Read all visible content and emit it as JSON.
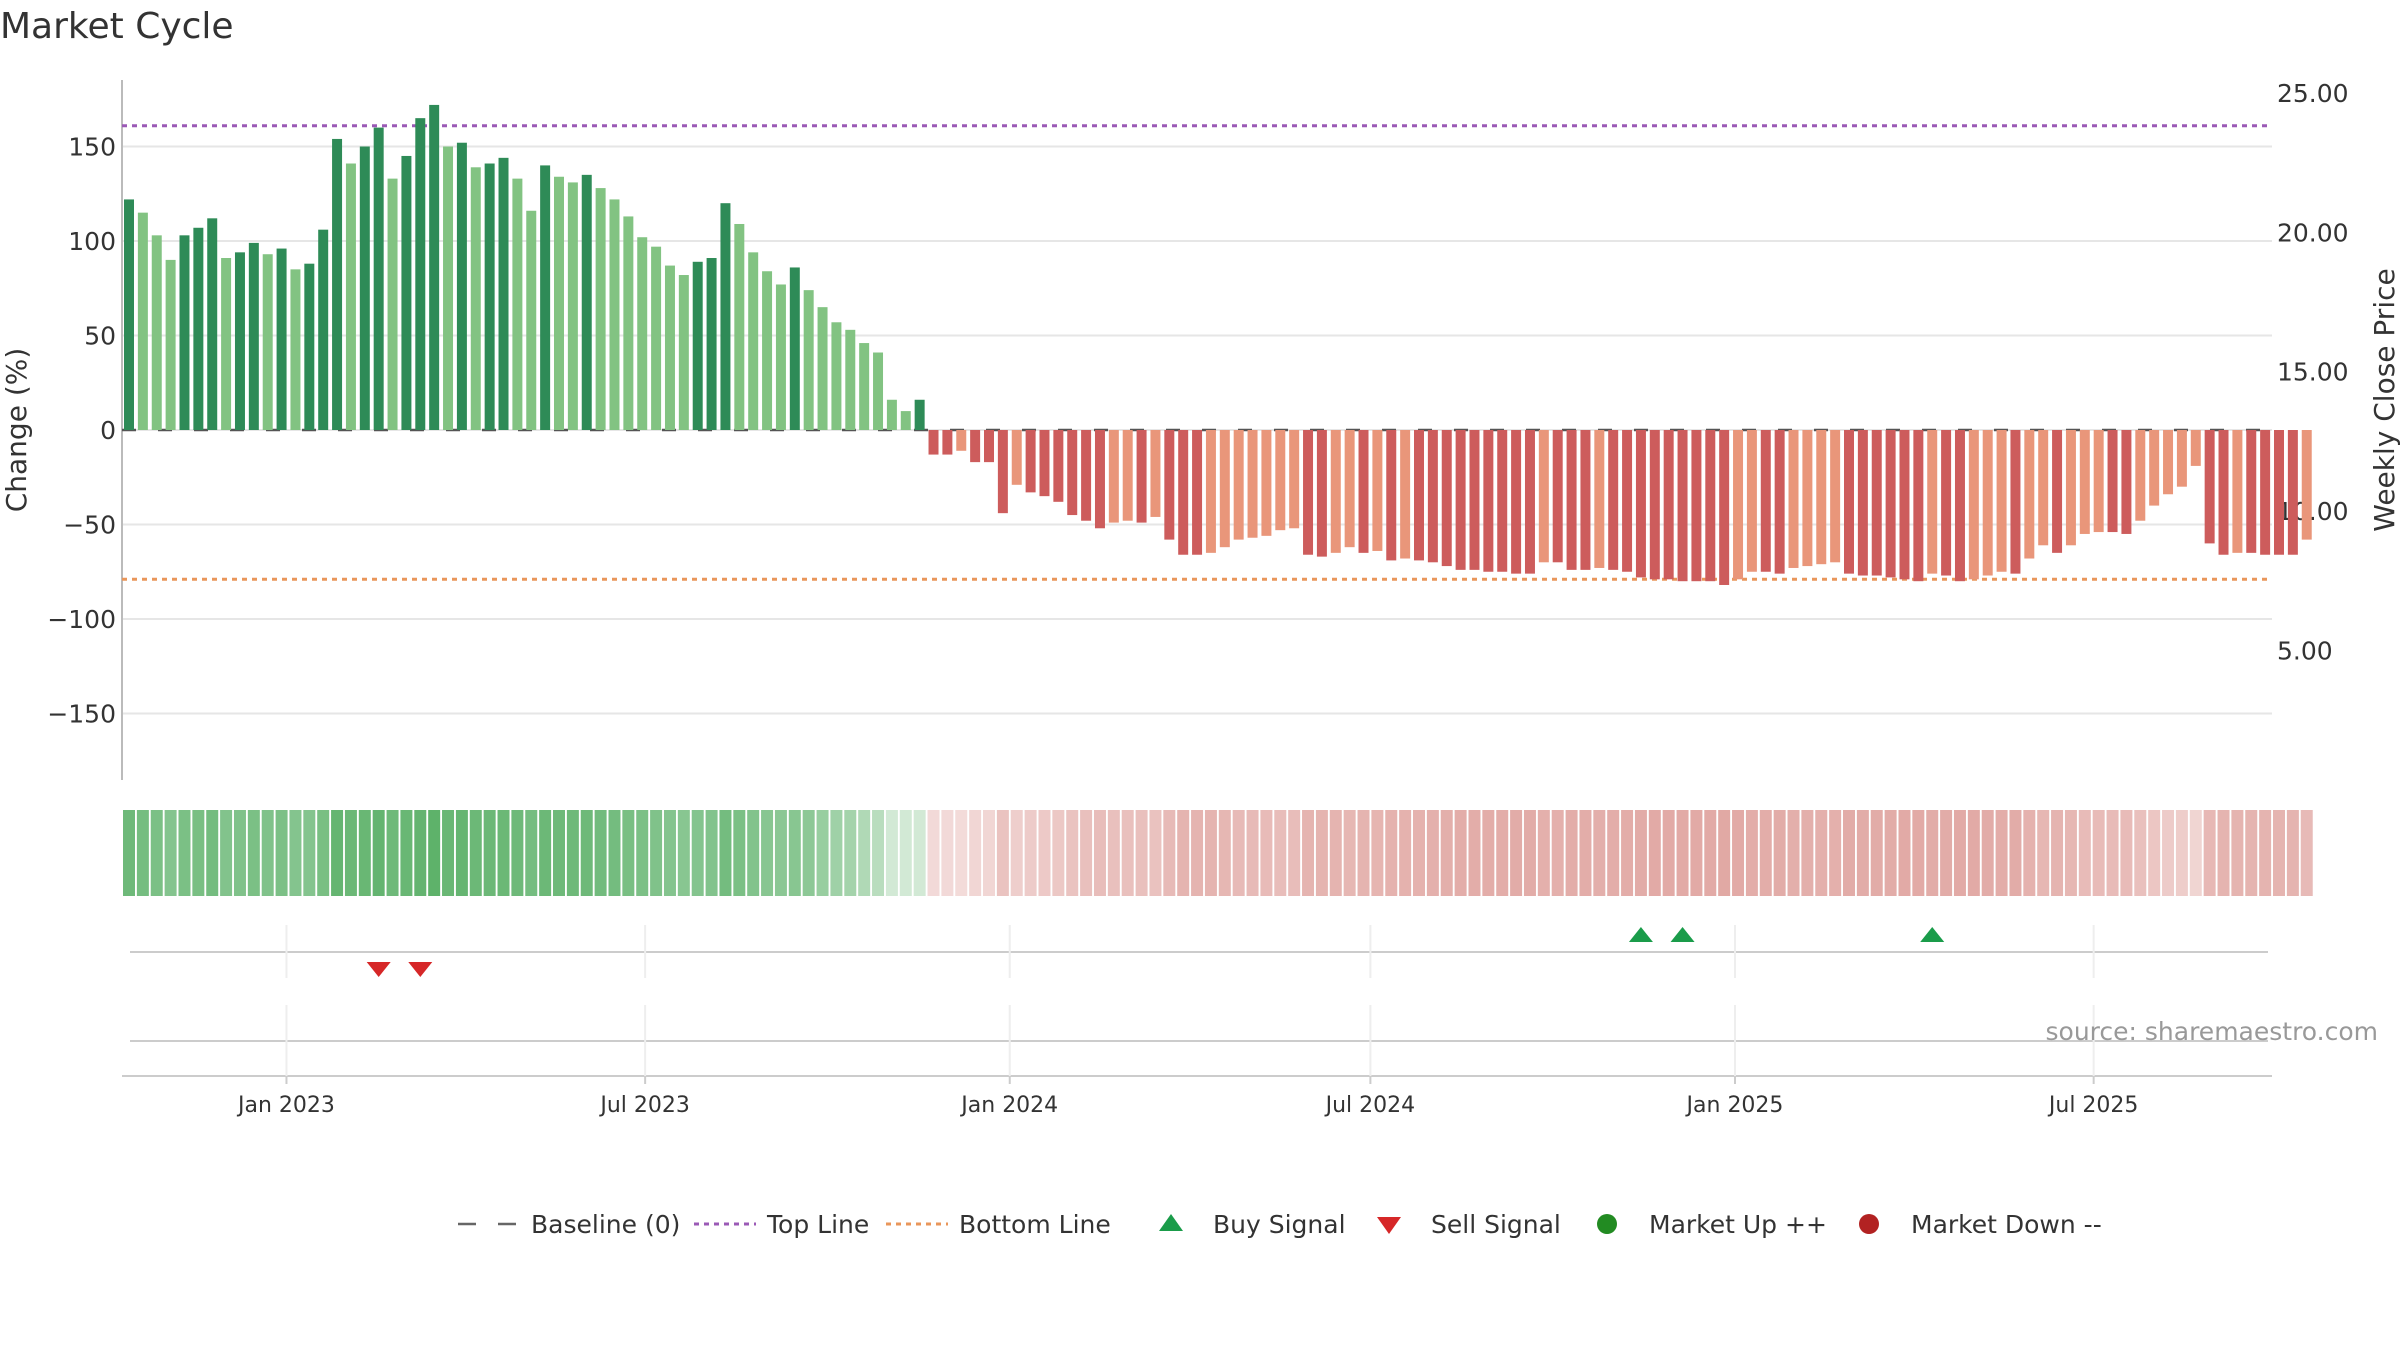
{
  "title": "Market Cycle",
  "source": "source: sharemaestro.com",
  "colors": {
    "up_dark": "#2e8b57",
    "up_light": "#82c382",
    "down_dark": "#cd5c5c",
    "down_light": "#e9967a",
    "top_line": "#9b59b6",
    "bottom_line": "#e9965a",
    "baseline": "#555555",
    "buy": "#1a9c4a",
    "sell": "#d62728",
    "market_up": "#228b22",
    "market_down": "#b22222"
  },
  "chart_data": {
    "type": "bar",
    "ylabel_left": "Change (%)",
    "ylabel_right": "Weekly Close Price",
    "ylim_left": [
      -185,
      185
    ],
    "y_ticks_left": [
      "150",
      "100",
      "50",
      "0",
      "−50",
      "−100",
      "−150"
    ],
    "y_ticks_left_values": [
      150,
      100,
      50,
      0,
      -50,
      -100,
      -150
    ],
    "y_ticks_right": [
      "25.00",
      "20.00",
      "15.00",
      "10.00",
      "5.00"
    ],
    "y_ticks_right_values": [
      25,
      20,
      15,
      10,
      5
    ],
    "ylim_right": [
      -0.17,
      27.2
    ],
    "top_line": 161,
    "bottom_line": -79,
    "x_start": "2022-10-10",
    "x_end": "2025-09-29",
    "x_ticks": [
      {
        "date": "2023-01-01",
        "label": "Jan 2023"
      },
      {
        "date": "2023-07-01",
        "label": "Jul 2023"
      },
      {
        "date": "2024-01-01",
        "label": "Jan 2024"
      },
      {
        "date": "2024-07-01",
        "label": "Jul 2024"
      },
      {
        "date": "2025-01-01",
        "label": "Jan 2025"
      },
      {
        "date": "2025-07-01",
        "label": "Jul 2025"
      }
    ],
    "first_week": "2022-10-10",
    "values": [
      122,
      115,
      103,
      90,
      103,
      107,
      112,
      91,
      94,
      99,
      93,
      96,
      85,
      88,
      106,
      154,
      141,
      150,
      160,
      133,
      145,
      165,
      172,
      150,
      152,
      139,
      141,
      144,
      133,
      116,
      140,
      134,
      131,
      135,
      128,
      122,
      113,
      102,
      97,
      87,
      82,
      89,
      91,
      120,
      109,
      94,
      84,
      77,
      86,
      74,
      65,
      57,
      53,
      46,
      41,
      16,
      10,
      16,
      -13,
      -13,
      -11,
      -17,
      -17,
      -44,
      -29,
      -33,
      -35,
      -38,
      -45,
      -48,
      -52,
      -49,
      -48,
      -49,
      -46,
      -58,
      -66,
      -66,
      -65,
      -62,
      -58,
      -57,
      -56,
      -53,
      -52,
      -66,
      -67,
      -65,
      -62,
      -65,
      -64,
      -69,
      -68,
      -69,
      -70,
      -72,
      -74,
      -74,
      -75,
      -75,
      -76,
      -76,
      -70,
      -70,
      -74,
      -74,
      -73,
      -74,
      -75,
      -78,
      -79,
      -79,
      -80,
      -80,
      -80,
      -82,
      -79,
      -75,
      -75,
      -76,
      -73,
      -72,
      -71,
      -70,
      -76,
      -77,
      -77,
      -78,
      -79,
      -80,
      -76,
      -77,
      -80,
      -79,
      -77,
      -75,
      -76,
      -68,
      -61,
      -65,
      -61,
      -55,
      -54,
      -54,
      -55,
      -48,
      -40,
      -34,
      -30,
      -19,
      -60,
      -66,
      -65,
      -65,
      -66,
      -66,
      -66,
      -58
    ],
    "strength": [
      0.35,
      0.38,
      0.4,
      0.44,
      0.4,
      0.39,
      0.37,
      0.43,
      0.42,
      0.4,
      0.42,
      0.41,
      0.44,
      0.44,
      0.39,
      0.31,
      0.33,
      0.32,
      0.3,
      0.35,
      0.32,
      0.3,
      0.28,
      0.32,
      0.31,
      0.34,
      0.34,
      0.33,
      0.35,
      0.38,
      0.34,
      0.35,
      0.35,
      0.35,
      0.36,
      0.37,
      0.39,
      0.41,
      0.42,
      0.44,
      0.45,
      0.44,
      0.43,
      0.37,
      0.4,
      0.43,
      0.45,
      0.47,
      0.45,
      0.48,
      0.52,
      0.55,
      0.58,
      0.62,
      0.66,
      0.78,
      0.85,
      0.8
    ],
    "buy_signals": [
      "2024-11-11",
      "2024-12-02",
      "2025-04-07"
    ],
    "sell_signals": [
      "2023-02-13",
      "2023-03-06"
    ],
    "legend": [
      {
        "label": "Baseline (0)",
        "marker": "dash-line"
      },
      {
        "label": "Top Line",
        "marker": "dotted-purple"
      },
      {
        "label": "Bottom Line",
        "marker": "dotted-orange"
      },
      {
        "label": "Buy Signal",
        "marker": "triangle-up"
      },
      {
        "label": "Sell Signal",
        "marker": "triangle-down"
      },
      {
        "label": "Market Up ++",
        "marker": "circle-green"
      },
      {
        "label": "Market Down --",
        "marker": "circle-red"
      }
    ],
    "legend_position": "bottom-center",
    "grid": true
  }
}
